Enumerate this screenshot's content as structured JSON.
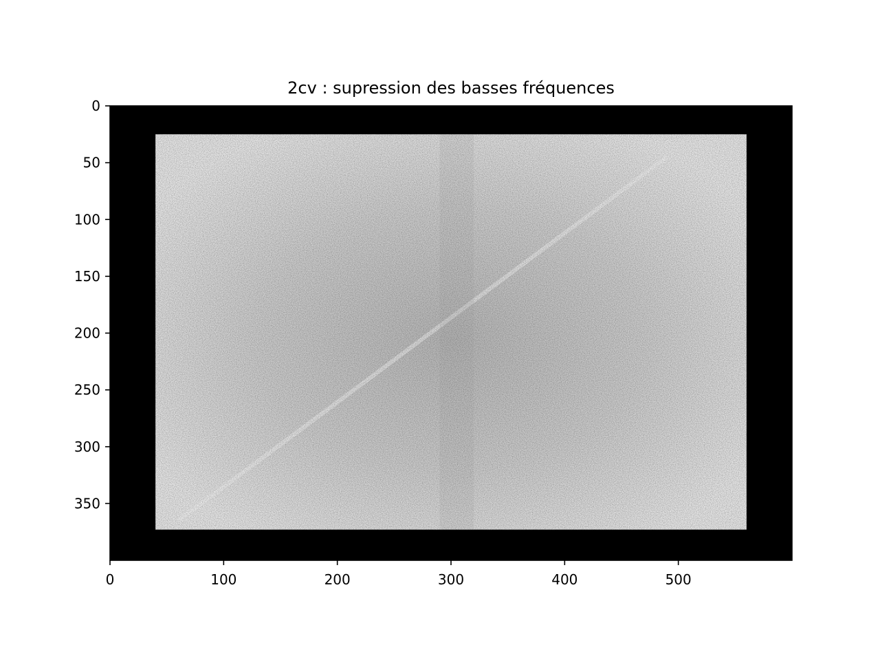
{
  "chart_data": {
    "type": "heatmap",
    "title": "2cv : supression des basses fréquences",
    "xlabel": "",
    "ylabel": "",
    "xlim": [
      0,
      600
    ],
    "ylim": [
      400,
      0
    ],
    "y_inverted": true,
    "colormap": "gray",
    "x_ticks": [
      0,
      100,
      200,
      300,
      400,
      500
    ],
    "y_ticks": [
      0,
      50,
      100,
      150,
      200,
      250,
      300,
      350
    ],
    "x_tick_labels": [
      "0",
      "100",
      "200",
      "300",
      "400",
      "500"
    ],
    "y_tick_labels": [
      "0",
      "50",
      "100",
      "150",
      "200",
      "250",
      "300",
      "350"
    ],
    "image_extent": {
      "width": 600,
      "height": 400
    },
    "zeroed_border": {
      "x": [
        0,
        40,
        560,
        600
      ],
      "y": [
        0,
        25,
        373,
        400
      ],
      "value": "black"
    },
    "spectrum_region": {
      "x": [
        40,
        560
      ],
      "y": [
        25,
        373
      ]
    },
    "content": "grayscale log-magnitude Fourier spectrum, low frequencies removed",
    "grid": false
  },
  "colors": {
    "border": "#000000",
    "spectrum_light": "#e8e8e8",
    "spectrum_dark": "#b4b4b4"
  }
}
